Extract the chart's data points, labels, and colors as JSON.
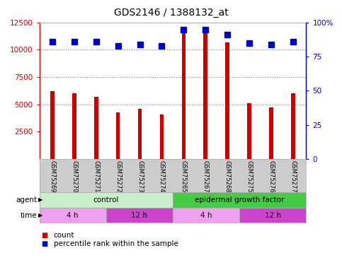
{
  "title": "GDS2146 / 1388132_at",
  "samples": [
    "GSM75269",
    "GSM75270",
    "GSM75271",
    "GSM75272",
    "GSM75273",
    "GSM75274",
    "GSM75265",
    "GSM75267",
    "GSM75268",
    "GSM75275",
    "GSM75276",
    "GSM75277"
  ],
  "counts": [
    6200,
    6000,
    5700,
    4300,
    4600,
    4100,
    11900,
    11900,
    10700,
    5100,
    4700,
    6000
  ],
  "percentile": [
    86,
    86,
    86,
    83,
    84,
    83,
    95,
    95,
    91,
    85,
    84,
    86
  ],
  "ylim_left": [
    0,
    12500
  ],
  "ylim_right": [
    0,
    100
  ],
  "yticks_left": [
    2500,
    5000,
    7500,
    10000,
    12500
  ],
  "yticks_right": [
    0,
    25,
    50,
    75,
    100
  ],
  "bar_color": "#cc0000",
  "dot_color": "#0000cc",
  "agent_groups": [
    {
      "label": "control",
      "start": 0,
      "end": 6,
      "color": "#c8f0c8"
    },
    {
      "label": "epidermal growth factor",
      "start": 6,
      "end": 12,
      "color": "#44cc44"
    }
  ],
  "time_groups": [
    {
      "label": "4 h",
      "start": 0,
      "end": 3,
      "color": "#f0a0f0"
    },
    {
      "label": "12 h",
      "start": 3,
      "end": 6,
      "color": "#cc44cc"
    },
    {
      "label": "4 h",
      "start": 6,
      "end": 9,
      "color": "#f0a0f0"
    },
    {
      "label": "12 h",
      "start": 9,
      "end": 12,
      "color": "#cc44cc"
    }
  ],
  "grid_color": "#888888",
  "tick_area_color": "#cccccc",
  "left_axis_color": "#cc0000",
  "right_axis_color": "#0000cc",
  "bar_width": 0.18,
  "dot_size": 5.5
}
